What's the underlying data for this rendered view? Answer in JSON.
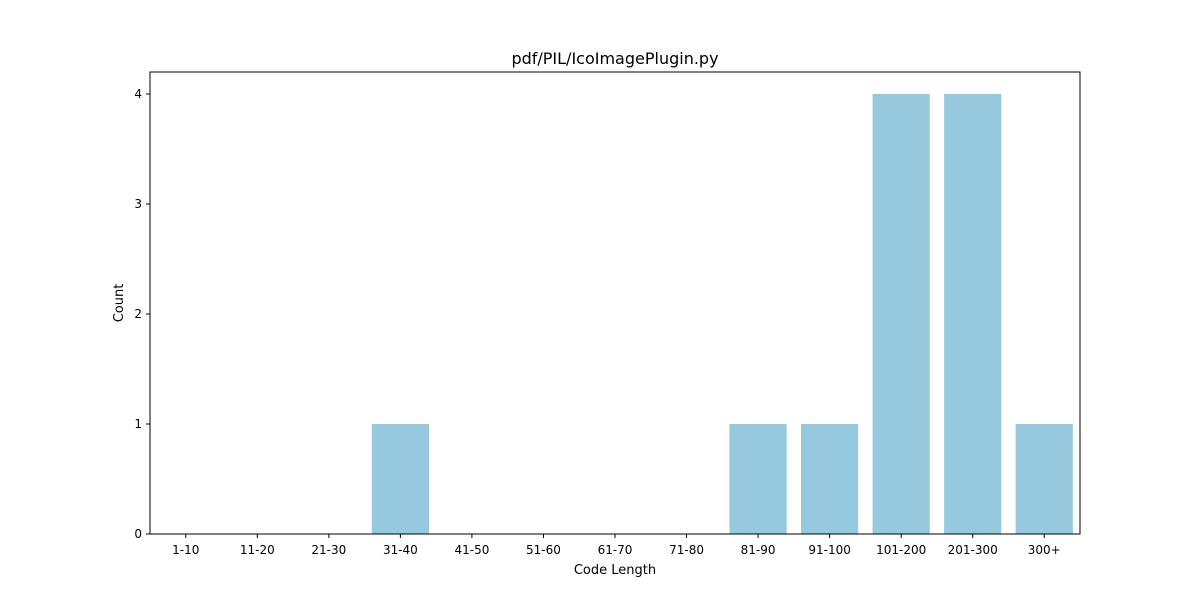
{
  "chart_data": {
    "type": "bar",
    "title": "pdf/PIL/IcoImagePlugin.py",
    "xlabel": "Code Length",
    "ylabel": "Count",
    "categories": [
      "1-10",
      "11-20",
      "21-30",
      "31-40",
      "41-50",
      "51-60",
      "61-70",
      "71-80",
      "81-90",
      "91-100",
      "101-200",
      "201-300",
      "300+"
    ],
    "values": [
      0,
      0,
      0,
      1,
      0,
      0,
      0,
      0,
      1,
      1,
      4,
      4,
      1
    ],
    "ylim": [
      0,
      4.2
    ],
    "yticks": [
      0,
      1,
      2,
      3,
      4
    ],
    "bar_color": "#96c9de",
    "grid": false,
    "legend": "none"
  }
}
